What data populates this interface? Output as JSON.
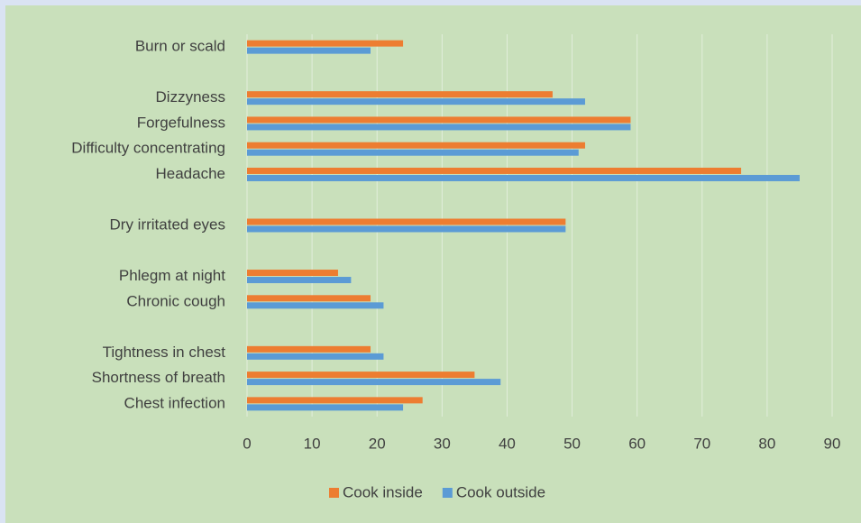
{
  "chart_data": {
    "type": "bar",
    "orientation": "horizontal",
    "categories": [
      "Burn or scald",
      null,
      "Dizzyness",
      "Forgefulness",
      "Difficulty concentrating",
      "Headache",
      null,
      "Dry irritated eyes",
      null,
      "Phlegm at night",
      "Chronic cough",
      null,
      "Tightness in chest",
      "Shortness of breath",
      "Chest infection"
    ],
    "series": [
      {
        "name": "Cook inside",
        "color": "#ed7d31",
        "values": [
          24,
          null,
          47,
          59,
          52,
          76,
          null,
          49,
          null,
          14,
          19,
          null,
          19,
          35,
          27
        ]
      },
      {
        "name": "Cook outside",
        "color": "#5b9bd5",
        "values": [
          19,
          null,
          52,
          59,
          51,
          85,
          null,
          49,
          null,
          16,
          21,
          null,
          21,
          39,
          24
        ]
      }
    ],
    "xlim": [
      0,
      90
    ],
    "xticks": [
      0,
      10,
      20,
      30,
      40,
      50,
      60,
      70,
      80,
      90
    ],
    "grid": true,
    "legend": "bottom"
  }
}
